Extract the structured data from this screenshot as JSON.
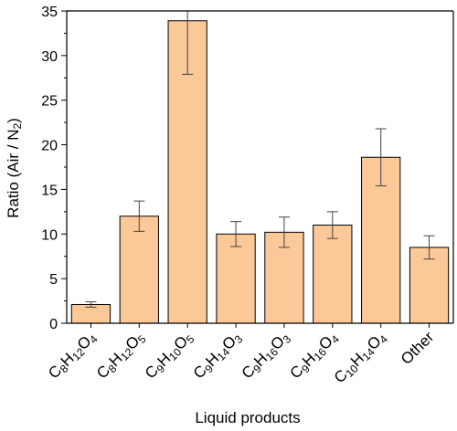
{
  "chart_data": {
    "type": "bar",
    "xlabel": "Liquid products",
    "ylabel_parts": [
      {
        "text": "Ratio (Air / N"
      },
      {
        "text": "2",
        "sub": true
      },
      {
        "text": ")"
      }
    ],
    "ylim": [
      0,
      35
    ],
    "yticks": [
      0,
      5,
      10,
      15,
      20,
      25,
      30,
      35
    ],
    "categories": [
      [
        {
          "text": "C"
        },
        {
          "text": "8",
          "sub": true
        },
        {
          "text": "H"
        },
        {
          "text": "12",
          "sub": true
        },
        {
          "text": "O"
        },
        {
          "text": "4",
          "sub": true
        }
      ],
      [
        {
          "text": "C"
        },
        {
          "text": "8",
          "sub": true
        },
        {
          "text": "H"
        },
        {
          "text": "12",
          "sub": true
        },
        {
          "text": "O"
        },
        {
          "text": "5",
          "sub": true
        }
      ],
      [
        {
          "text": "C"
        },
        {
          "text": "9",
          "sub": true
        },
        {
          "text": "H"
        },
        {
          "text": "10",
          "sub": true
        },
        {
          "text": "O"
        },
        {
          "text": "5",
          "sub": true
        }
      ],
      [
        {
          "text": "C"
        },
        {
          "text": "9",
          "sub": true
        },
        {
          "text": "H"
        },
        {
          "text": "14",
          "sub": true
        },
        {
          "text": "O"
        },
        {
          "text": "3",
          "sub": true
        }
      ],
      [
        {
          "text": "C"
        },
        {
          "text": "9",
          "sub": true
        },
        {
          "text": "H"
        },
        {
          "text": "16",
          "sub": true
        },
        {
          "text": "O"
        },
        {
          "text": "3",
          "sub": true
        }
      ],
      [
        {
          "text": "C"
        },
        {
          "text": "9",
          "sub": true
        },
        {
          "text": "H"
        },
        {
          "text": "16",
          "sub": true
        },
        {
          "text": "O"
        },
        {
          "text": "4",
          "sub": true
        }
      ],
      [
        {
          "text": "C"
        },
        {
          "text": "10",
          "sub": true
        },
        {
          "text": "H"
        },
        {
          "text": "14",
          "sub": true
        },
        {
          "text": "O"
        },
        {
          "text": "4",
          "sub": true
        }
      ],
      [
        {
          "text": "Other"
        }
      ]
    ],
    "values": [
      2.1,
      12.0,
      33.9,
      10.0,
      10.2,
      11.0,
      18.6,
      8.5
    ],
    "error": [
      0.3,
      1.7,
      6.0,
      1.4,
      1.7,
      1.5,
      3.2,
      1.3
    ],
    "bar_color": "#FBC898",
    "bar_edge_color": "#000000",
    "error_color": "#444444",
    "grid": false,
    "legend": "none"
  }
}
